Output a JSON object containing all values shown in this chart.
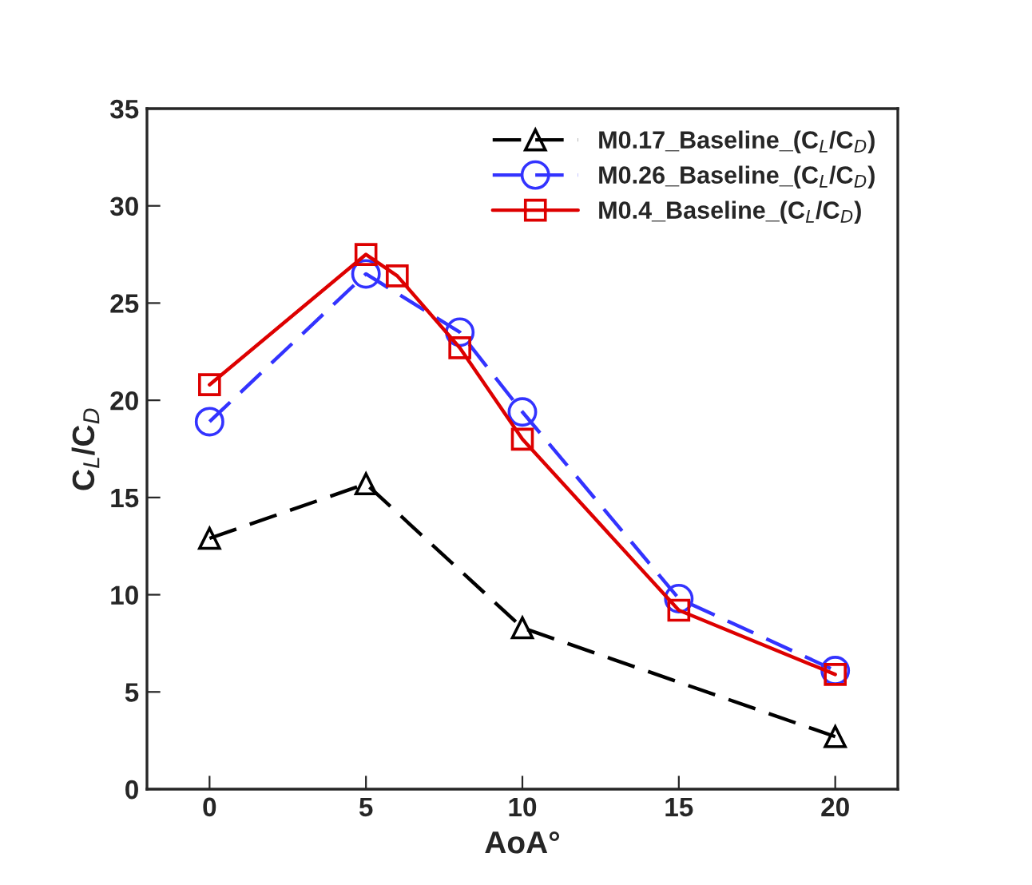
{
  "chart_data": {
    "type": "line",
    "xlabel": "AoA°",
    "ylabel": "C$_{L}$/C$_{D}$",
    "xlim": [
      -2,
      22
    ],
    "xticks": [
      0,
      5,
      10,
      15,
      20
    ],
    "ylim": [
      0,
      35
    ],
    "yticks": [
      0,
      5,
      10,
      15,
      20,
      25,
      30,
      35
    ],
    "grid": false,
    "legend": "top right",
    "series": [
      {
        "name": "M0.17_Baseline_(C$_{L}$/C$_{D}$)",
        "color": "#000000",
        "marker": "triangle",
        "line_style": "dashed",
        "x": [
          0,
          5,
          10,
          20
        ],
        "values": [
          12.9,
          15.7,
          8.3,
          2.7
        ]
      },
      {
        "name": "M0.26_Baseline_(C$_{L}$/C$_{D}$)",
        "color": "#3333ff",
        "marker": "circle",
        "line_style": "dashed",
        "x": [
          0,
          5,
          8,
          10,
          15,
          20
        ],
        "values": [
          18.9,
          26.5,
          23.5,
          19.4,
          9.8,
          6.1
        ]
      },
      {
        "name": "M0.4_Baseline_(C$_{L}$/C$_{D}$)",
        "color": "#dd0000",
        "marker": "square",
        "line_style": "solid",
        "x": [
          0,
          5,
          6,
          8,
          10,
          15,
          20
        ],
        "values": [
          20.8,
          27.5,
          26.4,
          22.7,
          18.0,
          9.2,
          5.9
        ]
      }
    ]
  }
}
